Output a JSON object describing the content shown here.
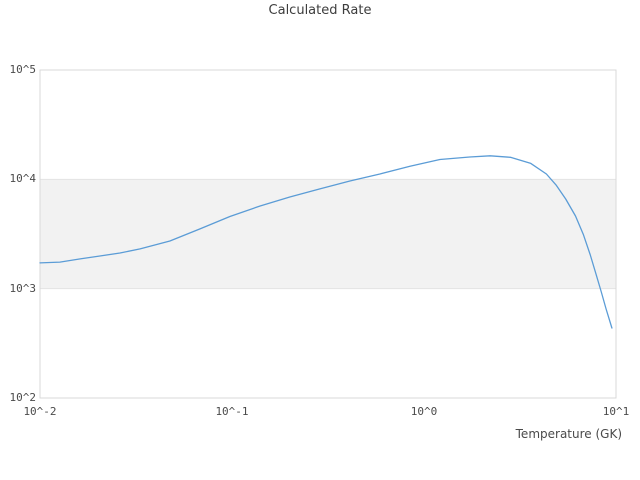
{
  "figure": {
    "background": "#ffffff"
  },
  "chart_data": {
    "type": "line",
    "title": "Calculated Rate",
    "xlabel": "Temperature (GK)",
    "ylabel": "",
    "x_scale": "log",
    "y_scale": "log",
    "xlim": [
      0.01,
      10
    ],
    "ylim": [
      100,
      100000
    ],
    "legend": "none",
    "grid": "decade band between 10^3 and 10^4 shaded",
    "x_ticks": [
      {
        "value": 0.01,
        "label": "10^-2"
      },
      {
        "value": 0.1,
        "label": "10^-1"
      },
      {
        "value": 1,
        "label": "10^0"
      },
      {
        "value": 10,
        "label": "10^1"
      }
    ],
    "y_ticks": [
      {
        "value": 100,
        "label": "10^2"
      },
      {
        "value": 1000,
        "label": "10^3"
      },
      {
        "value": 10000,
        "label": "10^4"
      },
      {
        "value": 100000,
        "label": "10^5"
      }
    ],
    "band": {
      "y_from": 1000,
      "y_to": 10000,
      "fill": "#f2f2f2",
      "edge": "#e3e3e3"
    },
    "colors": {
      "line": "#5b9cd6",
      "frame": "#d9d9d9",
      "title_text": "#3d3d3d",
      "tick_text": "#4a4a4a"
    },
    "series": [
      {
        "name": "Calculated Rate",
        "color": "#5b9cd6",
        "x": [
          0.01,
          0.0127,
          0.0162,
          0.0205,
          0.0261,
          0.0332,
          0.0475,
          0.0681,
          0.0975,
          0.14,
          0.2,
          0.287,
          0.411,
          0.589,
          0.845,
          1.21,
          1.73,
          2.21,
          2.82,
          3.6,
          4.34,
          4.87,
          5.47,
          6.15,
          6.77,
          7.35,
          7.9,
          8.38,
          8.88,
          9.52
        ],
        "y": [
          1720,
          1750,
          1870,
          1990,
          2120,
          2310,
          2730,
          3520,
          4570,
          5700,
          6900,
          8170,
          9660,
          11200,
          13200,
          15200,
          16000,
          16400,
          15900,
          14000,
          11200,
          8890,
          6610,
          4620,
          3100,
          2030,
          1330,
          933,
          652,
          437
        ]
      }
    ]
  }
}
